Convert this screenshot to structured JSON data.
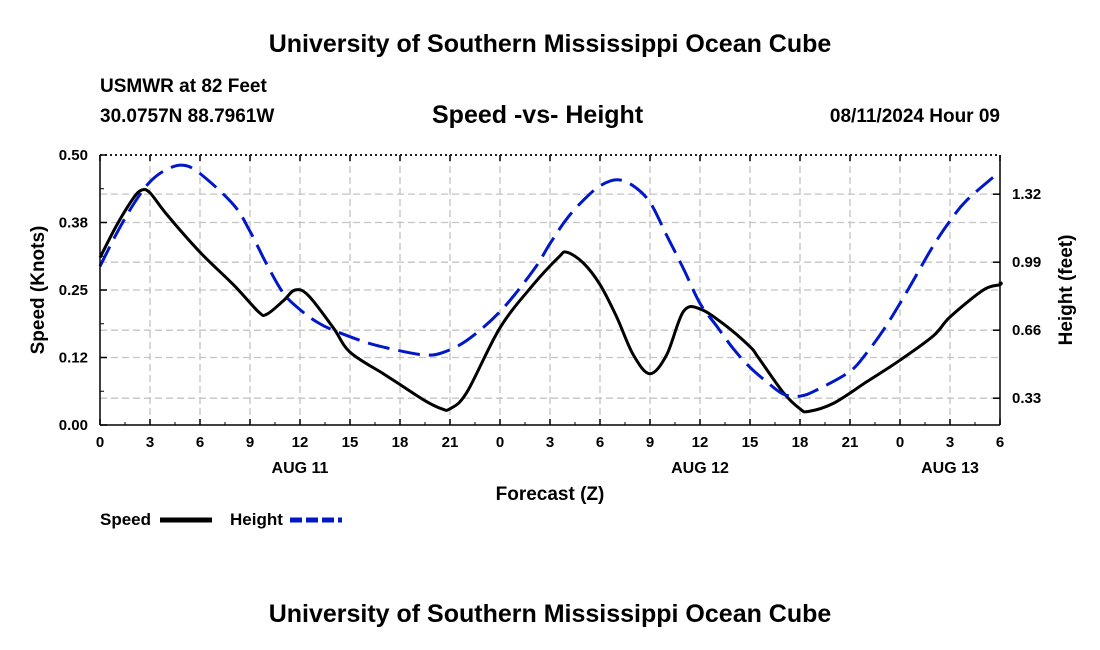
{
  "header": {
    "title": "University of Southern Mississippi Ocean Cube",
    "station": "USMWR at 82 Feet",
    "coords": "30.0757N  88.7961W",
    "subtitle": "Speed -vs- Height",
    "datetime": "08/11/2024 Hour 09"
  },
  "footer": {
    "title": "University of Southern Mississippi Ocean Cube"
  },
  "chart_data": {
    "type": "line",
    "xlabel": "Forecast (Z)",
    "ylabel": "Speed (Knots)",
    "y2label": "Height (feet)",
    "x_unit": "hours since 00Z Aug 11",
    "xlim": [
      0,
      54
    ],
    "ylim": [
      0,
      0.5
    ],
    "y2lim": [
      0.2,
      1.51
    ],
    "x_ticks": [
      0,
      3,
      6,
      9,
      12,
      15,
      18,
      21,
      24,
      27,
      30,
      33,
      36,
      39,
      42,
      45,
      48,
      51,
      54
    ],
    "x_tick_labels": [
      "0",
      "3",
      "6",
      "9",
      "12",
      "15",
      "18",
      "21",
      "0",
      "3",
      "6",
      "9",
      "12",
      "15",
      "18",
      "21",
      "0",
      "3",
      "6"
    ],
    "y_ticks": [
      0,
      0.125,
      0.25,
      0.375,
      0.5
    ],
    "y_tick_labels": [
      "0.00",
      "0.12",
      "0.25",
      "0.38",
      "0.50"
    ],
    "y2_ticks": [
      0.33,
      0.66,
      0.99,
      1.32
    ],
    "y2_tick_labels": [
      "0.33",
      "0.66",
      "0.99",
      "1.32"
    ],
    "date_labels": [
      {
        "x": 12,
        "label": "AUG 11"
      },
      {
        "x": 36,
        "label": "AUG 12"
      },
      {
        "x": 51,
        "label": "AUG 13"
      }
    ],
    "grid": true,
    "legend_position": "bottom-left",
    "series": [
      {
        "name": "Speed",
        "axis": "left",
        "color": "#000000",
        "dash": "solid",
        "points": [
          [
            0,
            0.31
          ],
          [
            1,
            0.37
          ],
          [
            2,
            0.42
          ],
          [
            2.5,
            0.435
          ],
          [
            3,
            0.43
          ],
          [
            4,
            0.39
          ],
          [
            6,
            0.32
          ],
          [
            8,
            0.26
          ],
          [
            9.5,
            0.21
          ],
          [
            10,
            0.205
          ],
          [
            11,
            0.23
          ],
          [
            11.7,
            0.25
          ],
          [
            12.5,
            0.24
          ],
          [
            14,
            0.18
          ],
          [
            15,
            0.135
          ],
          [
            17,
            0.095
          ],
          [
            18,
            0.075
          ],
          [
            19.5,
            0.045
          ],
          [
            20.5,
            0.03
          ],
          [
            21,
            0.03
          ],
          [
            22,
            0.06
          ],
          [
            24,
            0.18
          ],
          [
            26,
            0.26
          ],
          [
            27.5,
            0.31
          ],
          [
            28,
            0.32
          ],
          [
            29,
            0.3
          ],
          [
            30,
            0.26
          ],
          [
            31,
            0.2
          ],
          [
            32,
            0.13
          ],
          [
            33,
            0.095
          ],
          [
            34,
            0.13
          ],
          [
            35,
            0.21
          ],
          [
            36,
            0.215
          ],
          [
            37.5,
            0.185
          ],
          [
            39,
            0.145
          ],
          [
            39.5,
            0.125
          ],
          [
            41,
            0.06
          ],
          [
            42,
            0.03
          ],
          [
            42.5,
            0.025
          ],
          [
            44,
            0.04
          ],
          [
            46,
            0.08
          ],
          [
            48,
            0.12
          ],
          [
            50,
            0.165
          ],
          [
            51,
            0.2
          ],
          [
            53,
            0.25
          ],
          [
            54,
            0.26
          ],
          [
            54,
            0.265
          ]
        ]
      },
      {
        "name": "Height",
        "axis": "right",
        "color": "#0018c8",
        "dash": "dashed",
        "points": [
          [
            0,
            0.97
          ],
          [
            1,
            1.13
          ],
          [
            2,
            1.27
          ],
          [
            3,
            1.38
          ],
          [
            4,
            1.44
          ],
          [
            5,
            1.46
          ],
          [
            6,
            1.42
          ],
          [
            8,
            1.27
          ],
          [
            9,
            1.14
          ],
          [
            10,
            0.98
          ],
          [
            11,
            0.84
          ],
          [
            12,
            0.76
          ],
          [
            13,
            0.7
          ],
          [
            14,
            0.66
          ],
          [
            16,
            0.6
          ],
          [
            18,
            0.56
          ],
          [
            19.5,
            0.54
          ],
          [
            20.5,
            0.55
          ],
          [
            22,
            0.61
          ],
          [
            24,
            0.75
          ],
          [
            26,
            0.95
          ],
          [
            27,
            1.08
          ],
          [
            28,
            1.2
          ],
          [
            29,
            1.29
          ],
          [
            30,
            1.36
          ],
          [
            31,
            1.39
          ],
          [
            32,
            1.36
          ],
          [
            33,
            1.28
          ],
          [
            34,
            1.12
          ],
          [
            35,
            0.96
          ],
          [
            36,
            0.79
          ],
          [
            37,
            0.68
          ],
          [
            38,
            0.57
          ],
          [
            39,
            0.48
          ],
          [
            40,
            0.41
          ],
          [
            41,
            0.35
          ],
          [
            42,
            0.34
          ],
          [
            43,
            0.37
          ],
          [
            45,
            0.46
          ],
          [
            46,
            0.55
          ],
          [
            47,
            0.66
          ],
          [
            48,
            0.79
          ],
          [
            49,
            0.93
          ],
          [
            50,
            1.07
          ],
          [
            51,
            1.19
          ],
          [
            52,
            1.29
          ],
          [
            54,
            1.43
          ]
        ]
      }
    ]
  }
}
